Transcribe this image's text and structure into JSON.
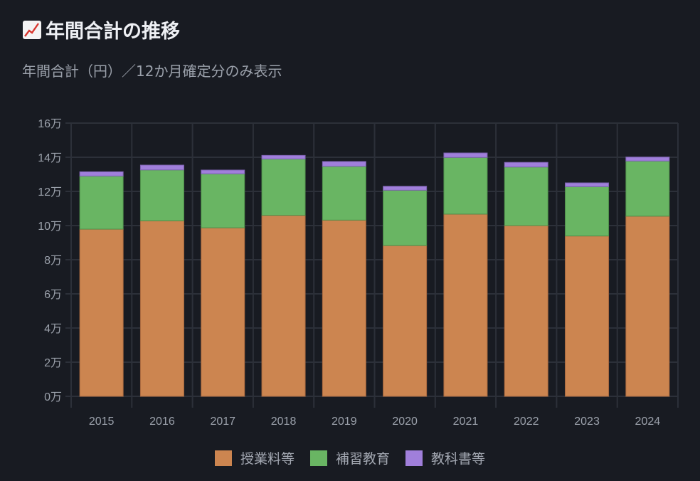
{
  "header": {
    "icon": "chart-increasing-icon",
    "title": "年間合計の推移",
    "subtitle": "年間合計（円）／12か月確定分のみ表示"
  },
  "chart_data": {
    "type": "bar",
    "stacked": true,
    "title": "年間合計の推移",
    "subtitle": "年間合計（円）／12か月確定分のみ表示",
    "xlabel": "",
    "ylabel": "",
    "ylim": [
      0,
      160000
    ],
    "y_unit_suffix": "万",
    "y_ticks": [
      "0万",
      "2万",
      "4万",
      "6万",
      "8万",
      "10万",
      "12万",
      "14万",
      "16万"
    ],
    "grid": true,
    "legend_position": "bottom",
    "categories": [
      "2015",
      "2016",
      "2017",
      "2018",
      "2019",
      "2020",
      "2021",
      "2022",
      "2023",
      "2024"
    ],
    "series": [
      {
        "name": "授業料等",
        "color": "#cc8550",
        "values": [
          97900,
          102800,
          98700,
          106000,
          103200,
          88300,
          106700,
          100000,
          93900,
          105500
        ]
      },
      {
        "name": "補習教育",
        "color": "#69b563",
        "values": [
          31100,
          29800,
          31600,
          33000,
          31500,
          32400,
          33200,
          34300,
          28900,
          32300
        ]
      },
      {
        "name": "教科書等",
        "color": "#a07fdb",
        "values": [
          2500,
          2800,
          2200,
          2100,
          2800,
          2300,
          2600,
          2700,
          2200,
          2300
        ]
      }
    ]
  }
}
